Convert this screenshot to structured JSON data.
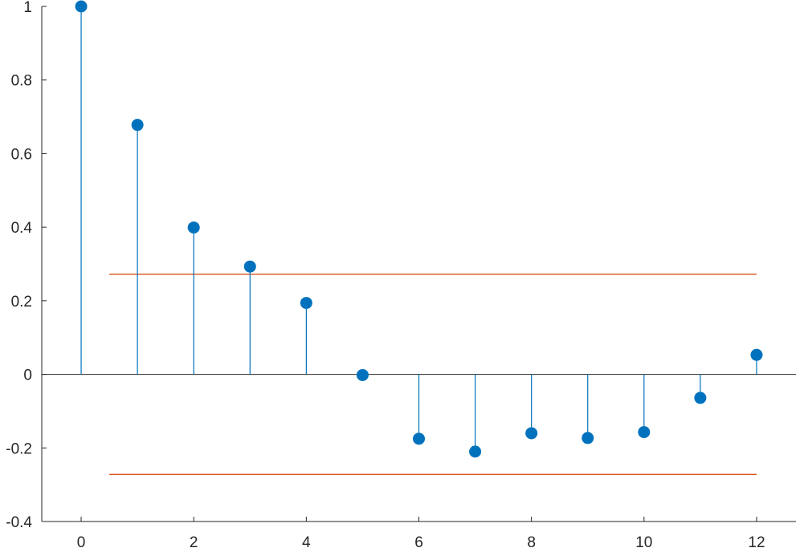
{
  "chart_data": {
    "type": "stem",
    "title": "",
    "xlabel": "",
    "ylabel": "",
    "xlim": [
      -0.7,
      12.7
    ],
    "ylim": [
      -0.4,
      1
    ],
    "x_ticks": [
      0,
      2,
      4,
      6,
      8,
      10,
      12
    ],
    "x_tick_labels": [
      "0",
      "2",
      "4",
      "6",
      "8",
      "10",
      "12"
    ],
    "y_ticks": [
      1,
      0.8,
      0.6,
      0.4,
      0.2,
      0,
      -0.2,
      -0.4
    ],
    "y_tick_labels": [
      "1",
      "0.8",
      "0.6",
      "0.4",
      "0.2",
      "0",
      "-0.2",
      "-0.4"
    ],
    "grid": false,
    "series": [
      {
        "x": [
          0,
          1,
          2,
          3,
          4,
          5,
          6,
          7,
          8,
          9,
          10,
          11,
          12
        ],
        "values": [
          1.0,
          0.678,
          0.399,
          0.293,
          0.194,
          -0.002,
          -0.175,
          -0.21,
          -0.16,
          -0.173,
          -0.157,
          -0.064,
          0.053
        ],
        "color": "#0072BD"
      }
    ],
    "bounds": [
      {
        "y": 0.272,
        "x": [
          0.5,
          12
        ],
        "color": "#D95319"
      },
      {
        "y": -0.272,
        "x": [
          0.5,
          12
        ],
        "color": "#D95319"
      }
    ]
  }
}
